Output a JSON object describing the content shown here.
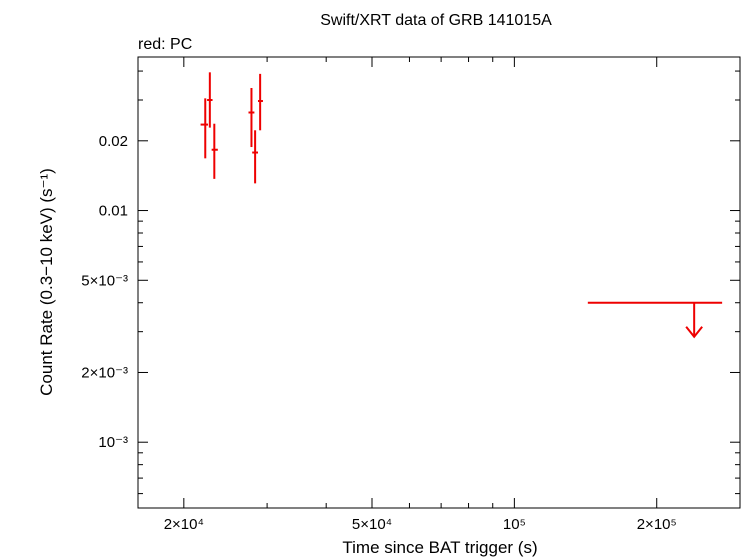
{
  "chart_data": {
    "type": "scatter",
    "title": "Swift/XRT data of GRB 141015A",
    "subtitle": "red: PC",
    "xlabel": "Time since BAT trigger (s)",
    "ylabel": "Count Rate (0.3−10 keV) (s⁻¹)",
    "x_scale": "log",
    "y_scale": "log",
    "xlim": [
      16000,
      300000
    ],
    "ylim": [
      0.00052,
      0.046
    ],
    "x_ticks": [
      {
        "value": 20000,
        "label": "2×10⁴"
      },
      {
        "value": 50000,
        "label": "5×10⁴"
      },
      {
        "value": 100000,
        "label": "10⁵"
      },
      {
        "value": 200000,
        "label": "2×10⁵"
      }
    ],
    "y_ticks": [
      {
        "value": 0.02,
        "label": "0.02"
      },
      {
        "value": 0.01,
        "label": "0.01"
      },
      {
        "value": 0.005,
        "label": "5×10⁻³"
      },
      {
        "value": 0.002,
        "label": "2×10⁻³"
      },
      {
        "value": 0.001,
        "label": "10⁻³"
      }
    ],
    "grid": false,
    "series": [
      {
        "name": "PC",
        "color": "#ee0000",
        "points": [
          {
            "x": 22200,
            "x_lo": 21700,
            "x_hi": 22500,
            "y": 0.0235,
            "y_lo": 0.0168,
            "y_hi": 0.0305
          },
          {
            "x": 22700,
            "x_lo": 22400,
            "x_hi": 23000,
            "y": 0.03,
            "y_lo": 0.0228,
            "y_hi": 0.0395
          },
          {
            "x": 23200,
            "x_lo": 22900,
            "x_hi": 23600,
            "y": 0.0183,
            "y_lo": 0.0137,
            "y_hi": 0.0237
          },
          {
            "x": 27800,
            "x_lo": 27400,
            "x_hi": 28200,
            "y": 0.0265,
            "y_lo": 0.0188,
            "y_hi": 0.0338
          },
          {
            "x": 28300,
            "x_lo": 27900,
            "x_hi": 28700,
            "y": 0.0178,
            "y_lo": 0.0131,
            "y_hi": 0.0222
          },
          {
            "x": 29000,
            "x_lo": 28700,
            "x_hi": 29400,
            "y": 0.0297,
            "y_lo": 0.0222,
            "y_hi": 0.0389
          }
        ],
        "upper_limits": [
          {
            "x": 240000,
            "x_lo": 143000,
            "x_hi": 275000,
            "y": 0.004
          }
        ]
      }
    ]
  }
}
